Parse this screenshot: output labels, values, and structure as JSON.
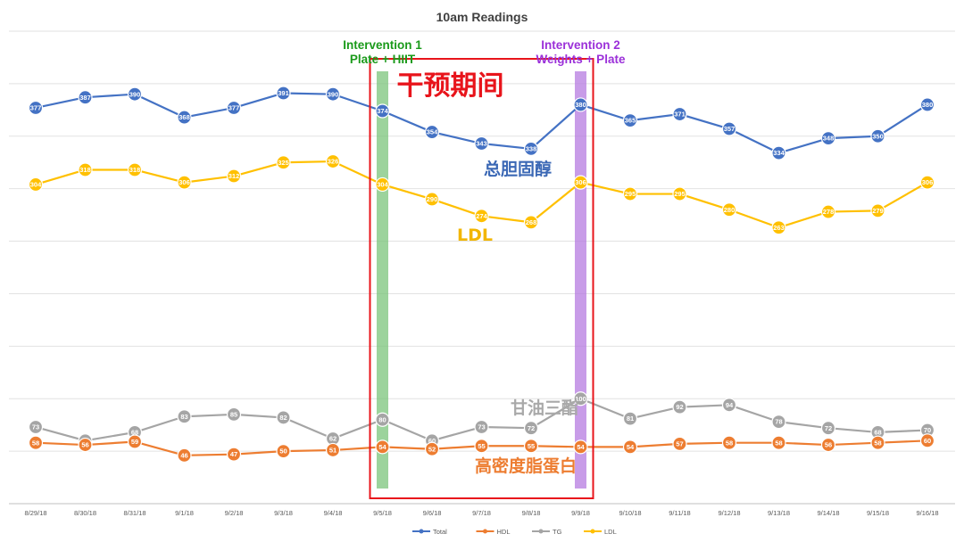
{
  "chart_data": {
    "type": "line",
    "title": "10am Readings",
    "xlabel": "",
    "ylabel": "",
    "ylim": [
      0,
      450
    ],
    "grid": true,
    "legend_position": "bottom",
    "categories": [
      "8/29/18",
      "8/30/18",
      "8/31/18",
      "9/1/18",
      "9/2/18",
      "9/3/18",
      "9/4/18",
      "9/5/18",
      "9/6/18",
      "9/7/18",
      "9/8/18",
      "9/9/18",
      "9/10/18",
      "9/11/18",
      "9/12/18",
      "9/13/18",
      "9/14/18",
      "9/15/18",
      "9/16/18"
    ],
    "series": [
      {
        "name": "Total",
        "color": "#4472C4",
        "values": [
          377,
          387,
          390,
          368,
          377,
          391,
          390,
          374,
          354,
          343,
          338,
          380,
          365,
          371,
          357,
          334,
          348,
          350,
          380
        ]
      },
      {
        "name": "HDL",
        "color": "#ED7D31",
        "values": [
          58,
          56,
          59,
          46,
          47,
          50,
          51,
          54,
          52,
          55,
          55,
          54,
          54,
          57,
          58,
          58,
          56,
          58,
          60
        ]
      },
      {
        "name": "TG",
        "color": "#A5A5A5",
        "values": [
          73,
          60,
          68,
          83,
          85,
          82,
          62,
          80,
          60,
          73,
          72,
          100,
          81,
          92,
          94,
          78,
          72,
          68,
          70
        ]
      },
      {
        "name": "LDL",
        "color": "#FFC000",
        "values": [
          304,
          318,
          318,
          306,
          312,
          325,
          326,
          304,
          290,
          274,
          268,
          306,
          295,
          295,
          280,
          263,
          278,
          279,
          306
        ]
      }
    ],
    "annotations": {
      "intervention1": {
        "title": "Intervention 1",
        "subtitle": "Plate + HIIT",
        "category": "9/5/18",
        "color": "#1A9A1A",
        "band_color": "#7BC47B"
      },
      "intervention2": {
        "title": "Intervention 2",
        "subtitle": "Weights + Plate",
        "category": "9/9/18",
        "color": "#9B30D9",
        "band_color": "#B57BE0"
      },
      "period_label": "干预期间",
      "period_color": "#E8141B",
      "series_labels": [
        {
          "series": "Total",
          "text": "总胆固醇",
          "color": "#3B68B5"
        },
        {
          "series": "LDL",
          "text": "LDL",
          "color": "#F2B600"
        },
        {
          "series": "TG",
          "text": "甘油三酯",
          "color": "#A9A9A9"
        },
        {
          "series": "HDL",
          "text": "高密度脂蛋白",
          "color": "#ED7D31"
        }
      ]
    }
  }
}
